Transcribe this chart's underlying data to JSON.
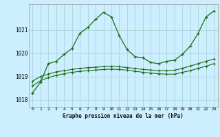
{
  "title": "Graphe pression niveau de la mer (hPa)",
  "background_color": "#cceeff",
  "grid_color": "#aad4d4",
  "line_color": "#1a6b1a",
  "yticks": [
    1018,
    1019,
    1020,
    1021
  ],
  "ylim": [
    1017.7,
    1022.1
  ],
  "xlim": [
    -0.5,
    23.5
  ],
  "x_labels": [
    "0",
    "1",
    "2",
    "3",
    "4",
    "5",
    "6",
    "7",
    "8",
    "9",
    "10",
    "11",
    "12",
    "13",
    "14",
    "15",
    "16",
    "17",
    "18",
    "19",
    "20",
    "21",
    "22",
    "23"
  ],
  "series1_x": [
    0,
    1,
    2,
    3,
    4,
    5,
    6,
    7,
    8,
    9,
    10,
    11,
    12,
    13,
    14,
    15,
    16,
    17,
    18,
    19,
    20,
    21,
    22,
    23
  ],
  "series1_y": [
    1018.3,
    1018.75,
    1019.55,
    1019.65,
    1019.95,
    1020.2,
    1020.85,
    1021.1,
    1021.45,
    1021.75,
    1021.55,
    1020.75,
    1020.15,
    1019.85,
    1019.8,
    1019.6,
    1019.55,
    1019.65,
    1019.7,
    1019.95,
    1020.3,
    1020.85,
    1021.55,
    1021.8
  ],
  "series2_x": [
    0,
    1,
    2,
    3,
    4,
    5,
    6,
    7,
    8,
    9,
    10,
    11,
    12,
    13,
    14,
    15,
    16,
    17,
    18,
    19,
    20,
    21,
    22,
    23
  ],
  "series2_y": [
    1018.8,
    1019.0,
    1019.1,
    1019.2,
    1019.25,
    1019.3,
    1019.35,
    1019.38,
    1019.4,
    1019.42,
    1019.44,
    1019.42,
    1019.38,
    1019.35,
    1019.3,
    1019.28,
    1019.25,
    1019.25,
    1019.27,
    1019.35,
    1019.45,
    1019.55,
    1019.65,
    1019.75
  ],
  "series3_x": [
    0,
    1,
    2,
    3,
    4,
    5,
    6,
    7,
    8,
    9,
    10,
    11,
    12,
    13,
    14,
    15,
    16,
    17,
    18,
    19,
    20,
    21,
    22,
    23
  ],
  "series3_y": [
    1018.6,
    1018.82,
    1018.95,
    1019.05,
    1019.12,
    1019.18,
    1019.22,
    1019.25,
    1019.28,
    1019.3,
    1019.32,
    1019.3,
    1019.27,
    1019.23,
    1019.18,
    1019.15,
    1019.12,
    1019.1,
    1019.1,
    1019.18,
    1019.25,
    1019.35,
    1019.44,
    1019.55
  ]
}
